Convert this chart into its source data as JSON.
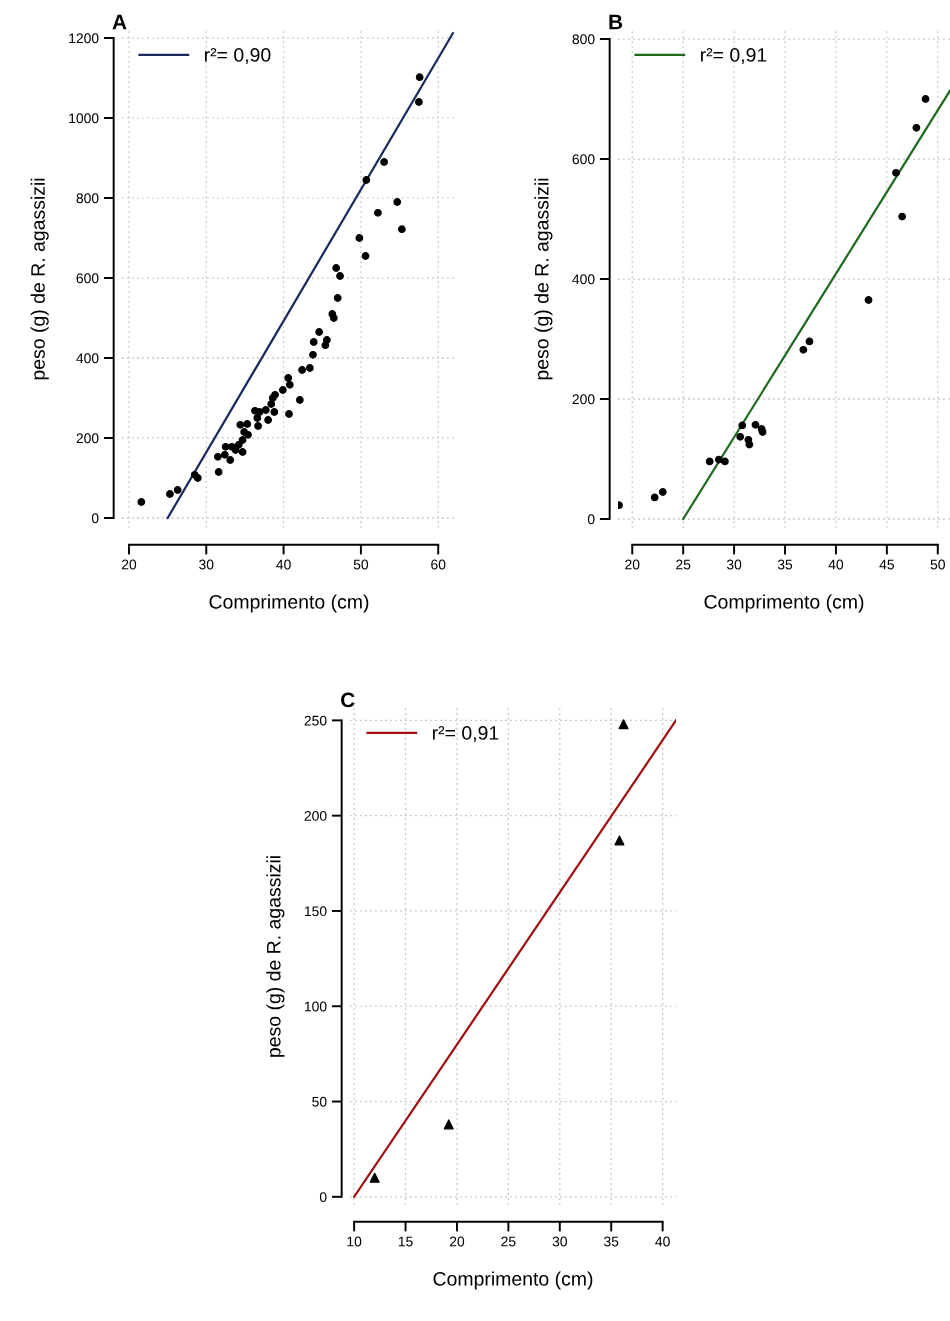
{
  "chart_data": [
    {
      "type": "scatter",
      "title": "A",
      "xlabel": "Comprimento (cm)",
      "ylabel": "peso (g) de R. agassizii",
      "xlim": [
        19.1,
        62.3
      ],
      "ylim": [
        -25,
        1220
      ],
      "xticks": [
        20,
        30,
        40,
        50,
        60
      ],
      "yticks": [
        0,
        200,
        400,
        600,
        800,
        1000,
        1200
      ],
      "grid": true,
      "legend": "top left",
      "series": [
        {
          "color": "#000000",
          "marker": "circle",
          "x": [
            21.6,
            25.3,
            26.3,
            28.5,
            28.9,
            31.6,
            31.5,
            32.4,
            32.5,
            33.1,
            33.3,
            33.8,
            34.2,
            34.7,
            34.7,
            34.9,
            35.4,
            34.4,
            35.3,
            36.3,
            36.6,
            36.7,
            36.9,
            37.7,
            38.0,
            38.4,
            38.6,
            38.8,
            38.9,
            39.9,
            40.6,
            40.8,
            40.7,
            42.1,
            42.4,
            43.4,
            43.8,
            43.9,
            44.6,
            45.4,
            45.6,
            46.3,
            46.5,
            46.8,
            47.0,
            47.3,
            49.8,
            50.6,
            50.7,
            52.2,
            53.0,
            54.7,
            55.3,
            57.5,
            57.6
          ],
          "values": [
            40,
            60,
            70,
            108,
            100,
            115,
            153,
            158,
            178,
            145,
            178,
            170,
            183,
            165,
            195,
            215,
            208,
            233,
            235,
            268,
            250,
            230,
            265,
            270,
            245,
            285,
            300,
            265,
            308,
            320,
            350,
            333,
            260,
            295,
            370,
            375,
            408,
            440,
            465,
            432,
            445,
            510,
            500,
            625,
            550,
            605,
            700,
            655,
            845,
            763,
            890,
            790,
            722,
            1040,
            1102
          ]
        },
        {
          "type": "line",
          "name": "r²= 0,90",
          "color": "#1a2a5e",
          "x": [
            25,
            61.9
          ],
          "values": [
            0,
            1212
          ]
        }
      ]
    },
    {
      "type": "scatter",
      "title": "B",
      "xlabel": "Comprimento (cm)",
      "ylabel": "peso (g) de R. agassizii",
      "xlim": [
        18.6,
        51.2
      ],
      "ylim": [
        -15,
        815
      ],
      "xticks": [
        20,
        25,
        30,
        35,
        40,
        45,
        50
      ],
      "yticks": [
        0,
        200,
        400,
        600,
        800
      ],
      "grid": true,
      "legend": "top left",
      "series": [
        {
          "color": "#000000",
          "marker": "circle",
          "x": [
            18.7,
            22.2,
            23.0,
            27.6,
            28.5,
            29.1,
            30.8,
            30.6,
            31.4,
            31.5,
            32.1,
            32.7,
            32.8,
            36.8,
            37.4,
            43.2,
            45.9,
            46.5,
            47.9,
            48.8
          ],
          "values": [
            23,
            36,
            45,
            96,
            99,
            96,
            156,
            137,
            132,
            124,
            157,
            150,
            145,
            282,
            296,
            365,
            577,
            504,
            652,
            700
          ]
        },
        {
          "type": "line",
          "name": "r²= 0,91",
          "color": "#1e6b1e",
          "x": [
            25,
            51.2
          ],
          "values": [
            0,
            714
          ]
        }
      ]
    },
    {
      "type": "scatter",
      "title": "C",
      "xlabel": "Comprimento (cm)",
      "ylabel": "peso (g) de R. agassizii",
      "xlim": [
        9.6,
        41.3
      ],
      "ylim": [
        -4.3,
        256.5
      ],
      "xticks": [
        10,
        15,
        20,
        25,
        30,
        35,
        40
      ],
      "yticks": [
        0,
        50,
        100,
        150,
        200,
        250
      ],
      "grid": true,
      "legend": "top left",
      "series": [
        {
          "color": "#000000",
          "marker": "triangle",
          "x": [
            12.0,
            19.2,
            35.8,
            36.2
          ],
          "values": [
            10,
            38,
            187,
            248
          ]
        },
        {
          "type": "line",
          "name": "r²= 0,91",
          "color": "#a01010",
          "x": [
            10,
            41.3
          ],
          "values": [
            0,
            250
          ]
        }
      ]
    }
  ]
}
